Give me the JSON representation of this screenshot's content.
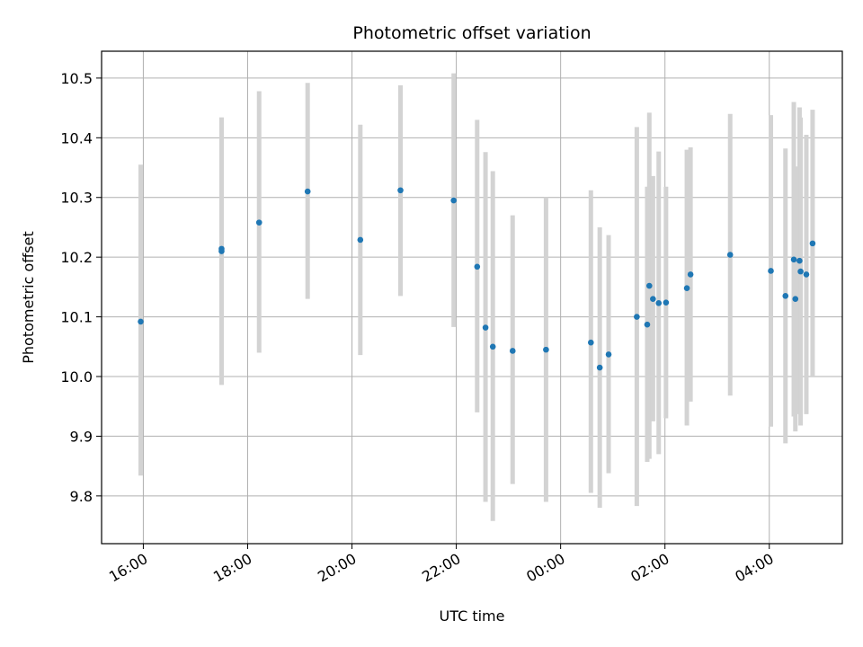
{
  "chart_data": {
    "type": "scatter",
    "title": "Photometric offset variation",
    "xlabel": "UTC time",
    "ylabel": "Photometric offset",
    "x_unit": "hours since 16:00 UTC (axis shows clock time)",
    "xlim": [
      -0.8,
      13.4
    ],
    "ylim": [
      9.72,
      10.545
    ],
    "x_ticks": [
      {
        "value": 0,
        "label": "16:00"
      },
      {
        "value": 2,
        "label": "18:00"
      },
      {
        "value": 4,
        "label": "20:00"
      },
      {
        "value": 6,
        "label": "22:00"
      },
      {
        "value": 8,
        "label": "00:00"
      },
      {
        "value": 10,
        "label": "02:00"
      },
      {
        "value": 12,
        "label": "04:00"
      }
    ],
    "y_ticks": [
      {
        "value": 9.8,
        "label": "9.8"
      },
      {
        "value": 9.9,
        "label": "9.9"
      },
      {
        "value": 10.0,
        "label": "10.0"
      },
      {
        "value": 10.1,
        "label": "10.1"
      },
      {
        "value": 10.2,
        "label": "10.2"
      },
      {
        "value": 10.3,
        "label": "10.3"
      },
      {
        "value": 10.4,
        "label": "10.4"
      },
      {
        "value": 10.5,
        "label": "10.5"
      }
    ],
    "grid": true,
    "colors": {
      "point": "#1f77b4",
      "errorbar": "#d3d3d3",
      "grid": "#b0b0b0"
    },
    "points": [
      {
        "x": -0.05,
        "y": 10.092,
        "lo": 9.834,
        "hi": 10.355
      },
      {
        "x": 1.5,
        "y": 10.214,
        "lo": 9.986,
        "hi": 10.434
      },
      {
        "x": 1.5,
        "y": 10.21,
        "lo": 9.986,
        "hi": 10.434
      },
      {
        "x": 2.22,
        "y": 10.258,
        "lo": 10.04,
        "hi": 10.478
      },
      {
        "x": 3.15,
        "y": 10.31,
        "lo": 10.13,
        "hi": 10.492
      },
      {
        "x": 4.16,
        "y": 10.229,
        "lo": 10.036,
        "hi": 10.422
      },
      {
        "x": 4.93,
        "y": 10.312,
        "lo": 10.135,
        "hi": 10.488
      },
      {
        "x": 5.95,
        "y": 10.295,
        "lo": 10.083,
        "hi": 10.508
      },
      {
        "x": 6.4,
        "y": 10.184,
        "lo": 9.94,
        "hi": 10.43
      },
      {
        "x": 6.56,
        "y": 10.082,
        "lo": 9.79,
        "hi": 10.376
      },
      {
        "x": 6.7,
        "y": 10.05,
        "lo": 9.758,
        "hi": 10.344
      },
      {
        "x": 7.08,
        "y": 10.043,
        "lo": 9.82,
        "hi": 10.27
      },
      {
        "x": 7.72,
        "y": 10.045,
        "lo": 9.79,
        "hi": 10.3
      },
      {
        "x": 8.58,
        "y": 10.057,
        "lo": 9.805,
        "hi": 10.312
      },
      {
        "x": 8.75,
        "y": 10.015,
        "lo": 9.78,
        "hi": 10.25
      },
      {
        "x": 8.92,
        "y": 10.037,
        "lo": 9.838,
        "hi": 10.237
      },
      {
        "x": 9.46,
        "y": 10.1,
        "lo": 9.783,
        "hi": 10.418
      },
      {
        "x": 9.66,
        "y": 10.087,
        "lo": 9.857,
        "hi": 10.318
      },
      {
        "x": 9.7,
        "y": 10.152,
        "lo": 9.862,
        "hi": 10.442
      },
      {
        "x": 9.77,
        "y": 10.13,
        "lo": 9.925,
        "hi": 10.336
      },
      {
        "x": 9.88,
        "y": 10.123,
        "lo": 9.87,
        "hi": 10.377
      },
      {
        "x": 10.02,
        "y": 10.124,
        "lo": 9.93,
        "hi": 10.318
      },
      {
        "x": 10.42,
        "y": 10.148,
        "lo": 9.918,
        "hi": 10.38
      },
      {
        "x": 10.49,
        "y": 10.171,
        "lo": 9.958,
        "hi": 10.384
      },
      {
        "x": 11.25,
        "y": 10.204,
        "lo": 9.968,
        "hi": 10.44
      },
      {
        "x": 12.03,
        "y": 10.177,
        "lo": 9.916,
        "hi": 10.438
      },
      {
        "x": 12.31,
        "y": 10.135,
        "lo": 9.888,
        "hi": 10.382
      },
      {
        "x": 12.47,
        "y": 10.196,
        "lo": 9.933,
        "hi": 10.46
      },
      {
        "x": 12.5,
        "y": 10.13,
        "lo": 9.908,
        "hi": 10.352
      },
      {
        "x": 12.58,
        "y": 10.194,
        "lo": 9.937,
        "hi": 10.451
      },
      {
        "x": 12.6,
        "y": 10.176,
        "lo": 9.918,
        "hi": 10.434
      },
      {
        "x": 12.71,
        "y": 10.171,
        "lo": 9.937,
        "hi": 10.405
      },
      {
        "x": 12.83,
        "y": 10.223,
        "lo": 10.0,
        "hi": 10.447
      }
    ]
  }
}
